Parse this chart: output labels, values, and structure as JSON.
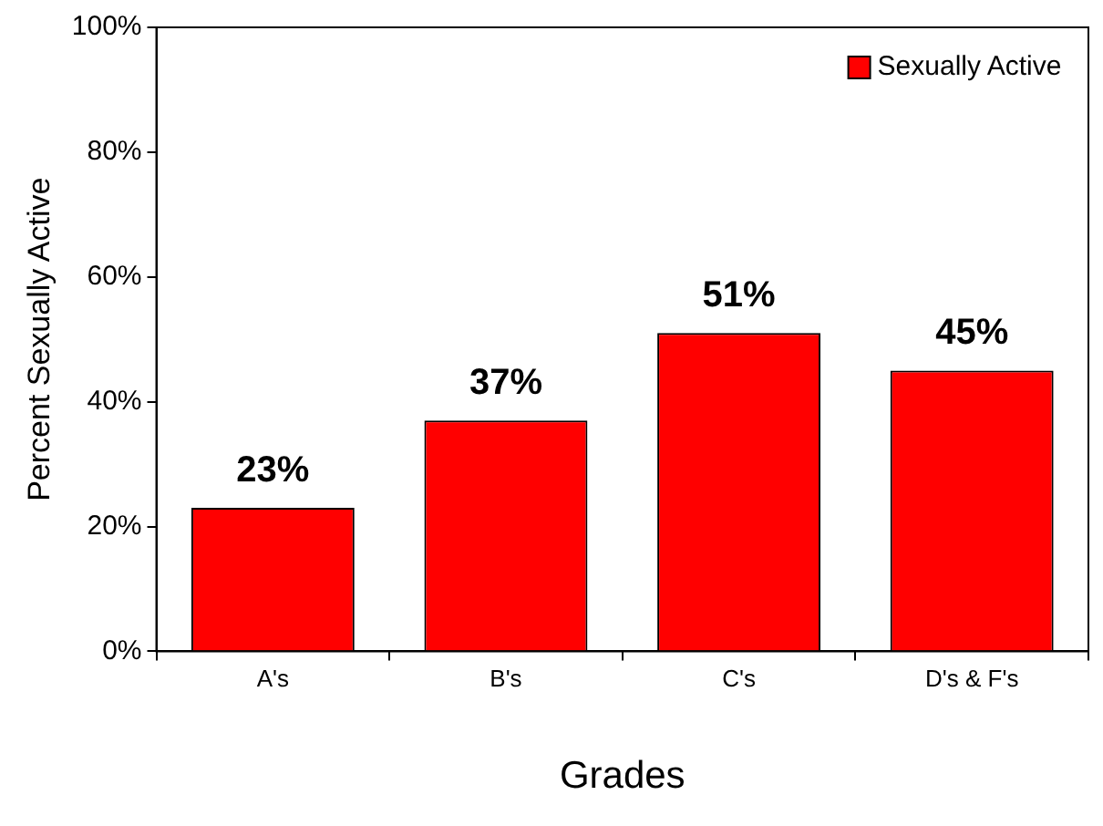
{
  "chart_data": {
    "type": "bar",
    "xlabel": "Grades",
    "ylabel": "Percent Sexually Active",
    "categories": [
      "A's",
      "B's",
      "C's",
      "D's & F's"
    ],
    "series": [
      {
        "name": "Sexually Active",
        "color": "#ff0000",
        "values": [
          23,
          37,
          51,
          45
        ]
      }
    ],
    "value_labels": [
      "23%",
      "37%",
      "51%",
      "45%"
    ],
    "ylim": [
      0,
      100
    ],
    "yticks": [
      {
        "value": 0,
        "label": "0%"
      },
      {
        "value": 20,
        "label": "20%"
      },
      {
        "value": 40,
        "label": "40%"
      },
      {
        "value": 60,
        "label": "60%"
      },
      {
        "value": 80,
        "label": "80%"
      },
      {
        "value": 100,
        "label": "100%"
      }
    ],
    "legend": "top right"
  }
}
